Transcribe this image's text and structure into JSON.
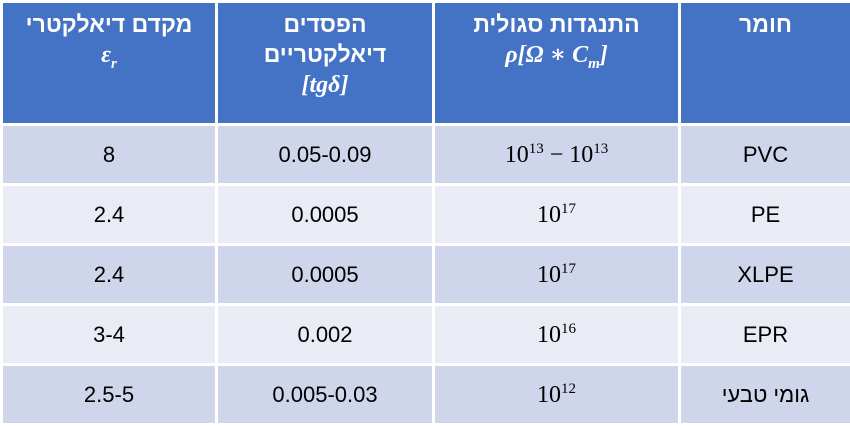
{
  "table": {
    "header": [
      {
        "title": "חומר"
      },
      {
        "title": "התנגדות סגולית",
        "formula": [
          {
            "text": "ρ[Ω ∗ C"
          },
          {
            "sub": "m"
          },
          {
            "text": "]"
          }
        ]
      },
      {
        "title": "הפסדים דיאלקטריים",
        "formula": [
          {
            "text": "[tgδ]"
          }
        ]
      },
      {
        "title": "מקדם דיאלקטרי",
        "formula": [
          {
            "text": "ε"
          },
          {
            "sub": "r"
          }
        ]
      }
    ],
    "rows": [
      [
        "PVC",
        [
          {
            "text": "10"
          },
          {
            "sup": "13"
          },
          {
            "text": " − 10"
          },
          {
            "sup": "13"
          }
        ],
        "0.05-0.09",
        "8"
      ],
      [
        "PE",
        [
          {
            "text": "10"
          },
          {
            "sup": "17"
          }
        ],
        "0.0005",
        "2.4"
      ],
      [
        "XLPE",
        [
          {
            "text": "10"
          },
          {
            "sup": "17"
          }
        ],
        "0.0005",
        "2.4"
      ],
      [
        "EPR",
        [
          {
            "text": "10"
          },
          {
            "sup": "16"
          }
        ],
        "0.002",
        "3-4"
      ],
      [
        "גומי טבעי",
        [
          {
            "text": "10"
          },
          {
            "sup": "12"
          }
        ],
        "0.005-0.03",
        "2.5-5"
      ]
    ]
  }
}
